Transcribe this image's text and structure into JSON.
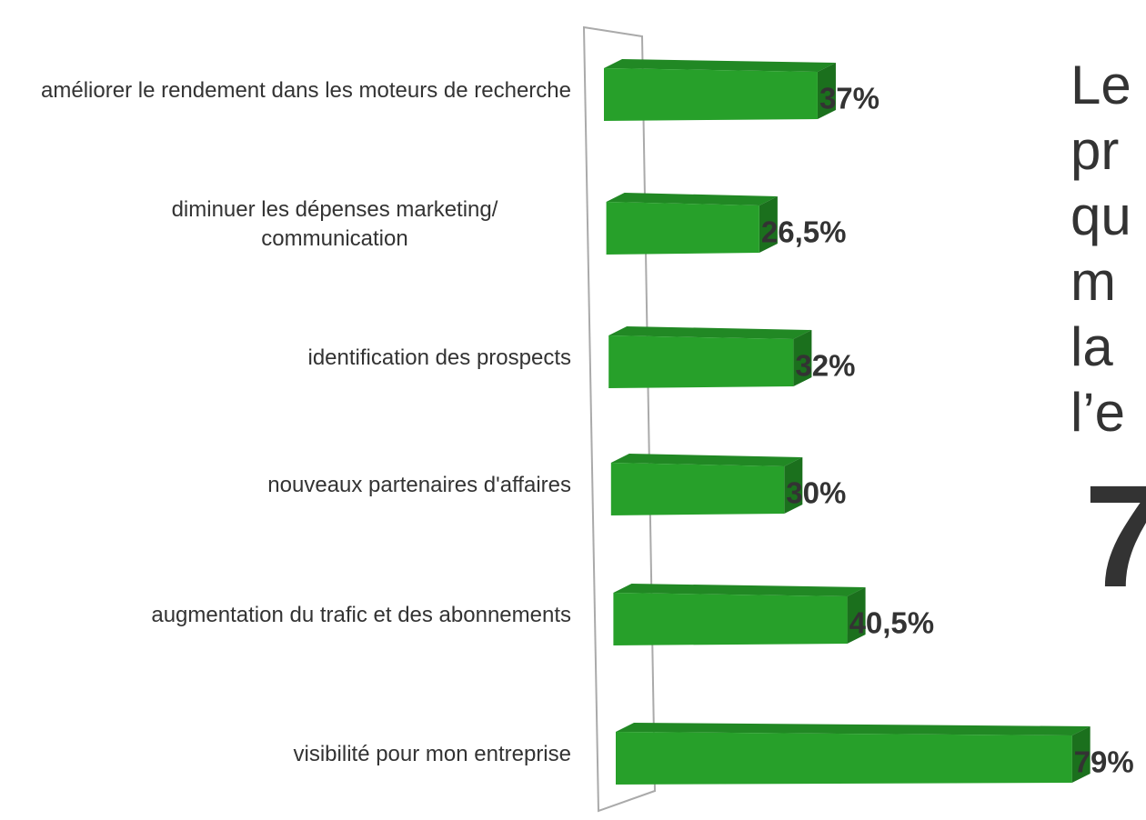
{
  "chart_data": {
    "type": "bar3d",
    "categories": [
      "améliorer le rendement dans les moteurs de recherche",
      "diminuer les dépenses marketing/ communication",
      "identification des prospects",
      "nouveaux partenaires d'affaires",
      "augmentation du trafic et des abonnements",
      "visibilité pour mon entreprise"
    ],
    "values": [
      37,
      26.5,
      32,
      30,
      40.5,
      79
    ],
    "value_labels": [
      "37%",
      "26,5%",
      "32%",
      "30%",
      "40,5%",
      "79%"
    ],
    "color": "#27a02a",
    "side_text": [
      "Le",
      "pr",
      "qu",
      "m",
      "la",
      "l’e"
    ],
    "side_big": "7"
  }
}
